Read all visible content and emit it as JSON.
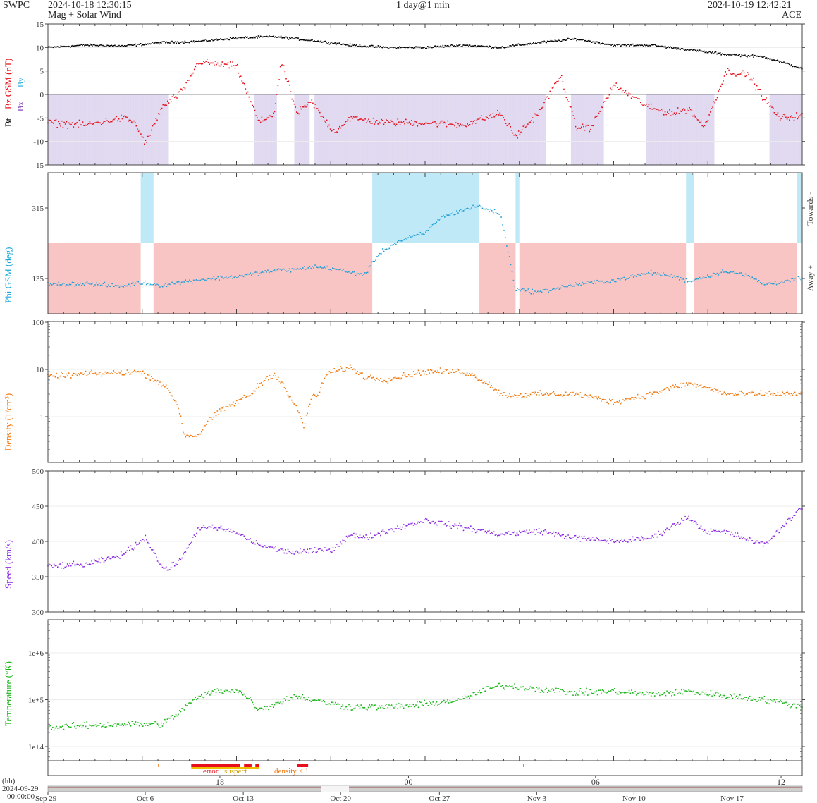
{
  "header": {
    "org": "SWPC",
    "start_time": "2024-10-18 12:30:15",
    "subtitle": "Mag + Solar Wind",
    "span": "1 day@1 min",
    "end_time": "2024-10-19 12:42:21",
    "source": "ACE"
  },
  "legend": {
    "bt": "Bt",
    "bz": "Bz GSM (nT)",
    "bx": "Bx",
    "by": "By",
    "towards": "Towards -",
    "away": "Away +",
    "flag_error": "error",
    "flag_suspect": "suspect",
    "flag_density": "density < 1"
  },
  "colors": {
    "bt": "#000000",
    "bz": "#e8101a",
    "bx": "#7a2fb0",
    "by": "#1aa7d8",
    "bz_south_fill": "#dcd3ef",
    "away_fill": "#f9c4c4",
    "towards_fill": "#bfe9f7",
    "phi": "#1f9fd8",
    "density": "#f0780f",
    "speed": "#8a2be2",
    "temperature": "#19b619",
    "error": "#e8101a",
    "suspect": "#f0c000"
  },
  "time_axis": {
    "hh_label": "(hh)",
    "start_date": "2024-09-29",
    "start_time": "00:00:00",
    "hour_ticks": [
      "18",
      "00",
      "06",
      "12"
    ],
    "date_ticks": [
      "Sep 29",
      "Oct 6",
      "Oct 13",
      "Oct 20",
      "Oct 27",
      "Nov 3",
      "Nov 10",
      "Nov 17"
    ]
  },
  "chart_data": [
    {
      "type": "scatter",
      "title": "Bt / Bz GSM",
      "ylabel": "Bz GSM (nT)",
      "ylim": [
        -15,
        15
      ],
      "y_ticks": [
        15,
        10,
        5,
        0,
        -5,
        -10,
        -15
      ],
      "series": [
        {
          "name": "Bt",
          "x_frac": [
            0,
            0.05,
            0.1,
            0.15,
            0.2,
            0.25,
            0.3,
            0.35,
            0.4,
            0.45,
            0.5,
            0.55,
            0.6,
            0.65,
            0.7,
            0.75,
            0.8,
            0.85,
            0.9,
            0.95,
            1.0
          ],
          "values": [
            10,
            10.5,
            10.3,
            11,
            11.3,
            12,
            12.3,
            11.5,
            10.5,
            10,
            10,
            10.5,
            10,
            11,
            11.8,
            10.5,
            10.5,
            9.5,
            8.5,
            8,
            5.5
          ]
        },
        {
          "name": "Bz GSM",
          "x_frac": [
            0,
            0.05,
            0.1,
            0.115,
            0.13,
            0.15,
            0.18,
            0.2,
            0.22,
            0.25,
            0.28,
            0.3,
            0.31,
            0.33,
            0.35,
            0.36,
            0.38,
            0.4,
            0.42,
            0.45,
            0.5,
            0.55,
            0.6,
            0.62,
            0.65,
            0.68,
            0.7,
            0.72,
            0.75,
            0.8,
            0.83,
            0.85,
            0.87,
            0.9,
            0.93,
            0.95,
            0.97,
            1.0
          ],
          "values": [
            -6,
            -6.5,
            -5,
            -6,
            -10.5,
            -3,
            1,
            7,
            6.5,
            6,
            -6,
            -4,
            7,
            -4,
            -1.5,
            -4,
            -8,
            -5,
            -5.5,
            -6,
            -6,
            -6.5,
            -4,
            -9,
            -4,
            4,
            -7,
            -7,
            2,
            -3,
            -4,
            -3,
            -7,
            5,
            4,
            -1,
            -5,
            -4.5
          ]
        }
      ]
    },
    {
      "type": "scatter",
      "title": "Phi GSM",
      "ylabel": "Phi GSM (deg)",
      "y_ticks": [
        315,
        135
      ],
      "series": [
        {
          "name": "Phi GSM",
          "x_frac": [
            0,
            0.05,
            0.1,
            0.12,
            0.15,
            0.2,
            0.25,
            0.3,
            0.33,
            0.35,
            0.38,
            0.4,
            0.42,
            0.44,
            0.46,
            0.48,
            0.5,
            0.52,
            0.55,
            0.57,
            0.6,
            0.62,
            0.65,
            0.7,
            0.75,
            0.8,
            0.83,
            0.85,
            0.9,
            0.93,
            0.95,
            1.0
          ],
          "values": [
            120,
            122,
            115,
            125,
            118,
            132,
            140,
            155,
            158,
            165,
            160,
            150,
            145,
            200,
            225,
            240,
            250,
            290,
            310,
            320,
            300,
            108,
            100,
            120,
            130,
            150,
            140,
            128,
            155,
            140,
            120,
            135
          ]
        }
      ]
    },
    {
      "type": "scatter",
      "title": "Density",
      "ylabel": "Density (1/cm³)",
      "y_scale": "log",
      "ylim": [
        0.1,
        100
      ],
      "y_ticks": [
        100,
        10,
        1
      ],
      "series": [
        {
          "name": "Density",
          "x_frac": [
            0,
            0.05,
            0.1,
            0.12,
            0.15,
            0.18,
            0.2,
            0.22,
            0.25,
            0.27,
            0.3,
            0.32,
            0.34,
            0.35,
            0.36,
            0.37,
            0.4,
            0.42,
            0.45,
            0.5,
            0.55,
            0.6,
            0.62,
            0.65,
            0.7,
            0.75,
            0.8,
            0.85,
            0.9,
            0.95,
            1.0
          ],
          "values": [
            7,
            8,
            8.5,
            9,
            5,
            0.4,
            0.4,
            1,
            2,
            3,
            8,
            2.5,
            0.5,
            2.5,
            3,
            8,
            11,
            7,
            6,
            9,
            9,
            3,
            2.8,
            3,
            3,
            2,
            3,
            5,
            3,
            3,
            3
          ]
        }
      ]
    },
    {
      "type": "scatter",
      "title": "Speed",
      "ylabel": "Speed (km/s)",
      "ylim": [
        300,
        500
      ],
      "y_ticks": [
        500,
        450,
        400,
        350,
        300
      ],
      "series": [
        {
          "name": "Speed",
          "x_frac": [
            0,
            0.05,
            0.08,
            0.1,
            0.13,
            0.15,
            0.16,
            0.18,
            0.2,
            0.23,
            0.25,
            0.28,
            0.3,
            0.32,
            0.35,
            0.38,
            0.4,
            0.42,
            0.45,
            0.5,
            0.55,
            0.6,
            0.65,
            0.7,
            0.75,
            0.8,
            0.85,
            0.87,
            0.9,
            0.95,
            1.0
          ],
          "values": [
            365,
            367,
            375,
            382,
            406,
            365,
            360,
            380,
            420,
            418,
            412,
            395,
            390,
            385,
            386,
            390,
            410,
            405,
            415,
            430,
            420,
            410,
            415,
            405,
            400,
            405,
            435,
            415,
            413,
            395,
            450
          ]
        }
      ]
    },
    {
      "type": "scatter",
      "title": "Temperature",
      "ylabel": "Temperature (°K)",
      "y_scale": "log",
      "ylim": [
        5000,
        3000000
      ],
      "y_ticks": [
        "1e+6",
        "1e+5",
        "1e+4"
      ],
      "series": [
        {
          "name": "Temperature",
          "x_frac": [
            0,
            0.05,
            0.1,
            0.15,
            0.17,
            0.2,
            0.22,
            0.25,
            0.28,
            0.3,
            0.33,
            0.35,
            0.38,
            0.4,
            0.45,
            0.5,
            0.55,
            0.6,
            0.65,
            0.7,
            0.75,
            0.8,
            0.85,
            0.9,
            0.95,
            1.0
          ],
          "values": [
            25000,
            28000,
            30000,
            30000,
            45000,
            110000,
            150000,
            160000,
            60000,
            80000,
            120000,
            100000,
            80000,
            70000,
            70000,
            80000,
            100000,
            200000,
            170000,
            140000,
            150000,
            130000,
            150000,
            120000,
            100000,
            70000
          ]
        }
      ]
    }
  ]
}
